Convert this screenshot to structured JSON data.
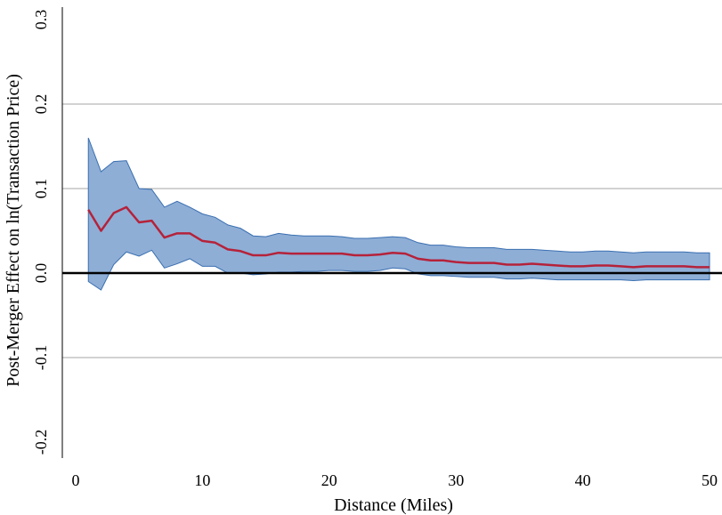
{
  "chart_data": {
    "type": "line",
    "title": "",
    "xlabel": "Distance (Miles)",
    "ylabel": "Post-Merger Effect on ln(Transaction Price)",
    "xlim": [
      0,
      50
    ],
    "ylim": [
      -0.2,
      0.3
    ],
    "xticks": [
      0,
      10,
      20,
      30,
      40,
      50
    ],
    "xtick_labels": [
      "0",
      "10",
      "20",
      "30",
      "40",
      "50"
    ],
    "yticks": [
      -0.2,
      -0.1,
      0.0,
      0.1,
      0.2,
      0.3
    ],
    "ytick_labels": [
      "-0.2",
      "-0.1",
      "0.0",
      "0.1",
      "0.2",
      "0.3"
    ],
    "grid": "horizontal",
    "zero_line": true,
    "colors": {
      "estimate": "#b5223a",
      "band_fill": "#8eaed6",
      "band_stroke": "#3a6fb0",
      "grid": "#a6a6a6",
      "zero": "#000000"
    },
    "x": [
      1,
      2,
      3,
      4,
      5,
      6,
      7,
      8,
      9,
      10,
      11,
      12,
      13,
      14,
      15,
      16,
      17,
      18,
      19,
      20,
      21,
      22,
      23,
      24,
      25,
      26,
      27,
      28,
      29,
      30,
      31,
      32,
      33,
      34,
      35,
      36,
      37,
      38,
      39,
      40,
      41,
      42,
      43,
      44,
      45,
      46,
      47,
      48,
      49,
      50
    ],
    "series": [
      {
        "role": "estimate",
        "values": [
          0.075,
          0.05,
          0.071,
          0.078,
          0.06,
          0.062,
          0.042,
          0.047,
          0.047,
          0.038,
          0.036,
          0.028,
          0.026,
          0.021,
          0.021,
          0.024,
          0.023,
          0.023,
          0.023,
          0.023,
          0.023,
          0.021,
          0.021,
          0.022,
          0.024,
          0.023,
          0.017,
          0.015,
          0.015,
          0.013,
          0.012,
          0.012,
          0.012,
          0.01,
          0.01,
          0.011,
          0.01,
          0.009,
          0.008,
          0.008,
          0.009,
          0.009,
          0.008,
          0.007,
          0.008,
          0.008,
          0.008,
          0.008,
          0.007,
          0.007
        ]
      },
      {
        "role": "upper",
        "values": [
          0.16,
          0.12,
          0.132,
          0.133,
          0.1,
          0.099,
          0.078,
          0.085,
          0.078,
          0.07,
          0.066,
          0.057,
          0.053,
          0.044,
          0.043,
          0.047,
          0.045,
          0.044,
          0.044,
          0.044,
          0.043,
          0.041,
          0.041,
          0.042,
          0.043,
          0.042,
          0.036,
          0.033,
          0.033,
          0.031,
          0.03,
          0.03,
          0.03,
          0.028,
          0.028,
          0.028,
          0.027,
          0.026,
          0.025,
          0.025,
          0.026,
          0.026,
          0.025,
          0.024,
          0.025,
          0.025,
          0.025,
          0.025,
          0.024,
          0.024
        ]
      },
      {
        "role": "lower",
        "values": [
          -0.01,
          -0.02,
          0.01,
          0.025,
          0.02,
          0.027,
          0.006,
          0.011,
          0.017,
          0.008,
          0.008,
          0.0,
          0.0,
          -0.002,
          -0.001,
          0.001,
          0.001,
          0.002,
          0.002,
          0.003,
          0.003,
          0.002,
          0.002,
          0.003,
          0.006,
          0.005,
          -0.001,
          -0.003,
          -0.003,
          -0.004,
          -0.005,
          -0.005,
          -0.005,
          -0.007,
          -0.007,
          -0.006,
          -0.007,
          -0.008,
          -0.008,
          -0.008,
          -0.008,
          -0.008,
          -0.008,
          -0.009,
          -0.008,
          -0.008,
          -0.008,
          -0.008,
          -0.008,
          -0.008
        ]
      }
    ]
  }
}
